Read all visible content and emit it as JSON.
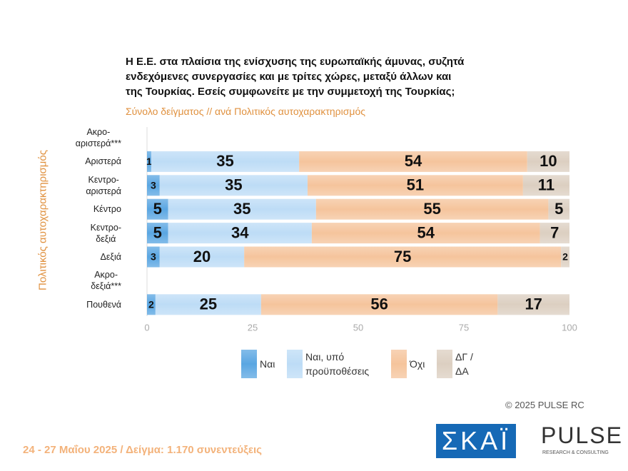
{
  "chart_data": {
    "type": "stacked-bar-horizontal",
    "title": "Η Ε.Ε. στα πλαίσια της ενίσχυσης της ευρωπαϊκής άμυνας, συζητά\nενδεχόμενες συνεργασίες και με τρίτες χώρες, μεταξύ άλλων και\nτης Τουρκίας. Εσείς συμφωνείτε με την συμμετοχή της Τουρκίας;",
    "subtitle": "Σύνολο δείγματος // ανά Πολιτικός αυτοχαρακτηρισμός",
    "y_axis_label": "Πολιτικός αυτοχαρακτηρισμός",
    "categories": [
      "Ακρο-\nαριστερά***",
      "Αριστερά",
      "Κεντρο-\nαριστερά",
      "Κέντρο",
      "Κεντρο-\nδεξιά",
      "Δεξιά",
      "Ακρο-\nδεξιά***",
      "Πουθενά"
    ],
    "series": [
      {
        "name": "Ναι",
        "color": "#5aa6e2",
        "values": [
          null,
          1,
          3,
          5,
          5,
          3,
          null,
          2
        ]
      },
      {
        "name": "Ναι, υπό\nπροϋποθέσεις",
        "color": "#bddcf6",
        "values": [
          null,
          35,
          35,
          35,
          34,
          20,
          null,
          25
        ]
      },
      {
        "name": "Όχι",
        "color": "#f5c49c",
        "values": [
          null,
          54,
          51,
          55,
          54,
          75,
          null,
          56
        ]
      },
      {
        "name": "ΔΓ /\nΔΑ",
        "color": "#dccfc1",
        "values": [
          null,
          10,
          11,
          5,
          7,
          2,
          null,
          17
        ]
      }
    ],
    "xlim": [
      0,
      100
    ],
    "xticks": [
      0,
      25,
      50,
      75,
      100
    ],
    "grid": false,
    "legend": "bottom",
    "copyright": "©  2025  PULSE RC",
    "footer": "24 - 27 Μαΐου 2025  /  Δείγμα:  1.170 συνεντεύξεις",
    "logo_left": "ΣΚΑΪ",
    "logo_right": "PULSE",
    "logo_right_sub": "RESEARCH & CONSULTING"
  }
}
